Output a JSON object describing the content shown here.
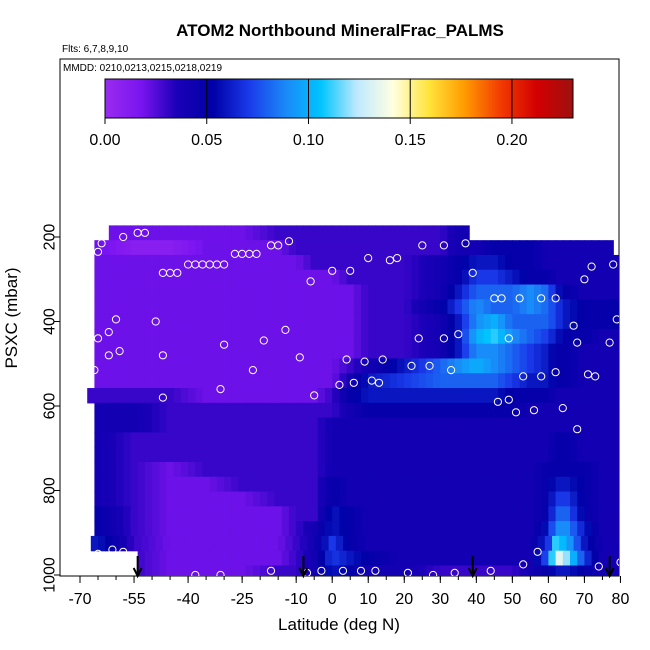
{
  "chart_data": {
    "type": "heatmap",
    "title": "ATOM2 Northbound MineralFrac_PALMS",
    "flights_note": "Flts: 6,7,8,9,10",
    "dates_note": "MMDD: 0210,0213,0215,0218,0219",
    "xlabel": "Latitude (deg N)",
    "ylabel": "PSXC (mbar)",
    "xlim": [
      -70,
      82
    ],
    "ylim": [
      1005,
      110
    ],
    "x_ticks": [
      "-70",
      "-55",
      "-40",
      "-25",
      "-10",
      "0",
      "10",
      "20",
      "30",
      "40",
      "50",
      "60",
      "70",
      "80"
    ],
    "y_ticks": [
      "200",
      "400",
      "600",
      "800",
      "1000"
    ],
    "colorbar": {
      "range": [
        0,
        0.23
      ],
      "ticks": [
        "0.00",
        "0.05",
        "0.10",
        "0.15",
        "0.20"
      ],
      "colors": [
        "#9a2cf0",
        "#7a14f0",
        "#1a00b8",
        "#0000a6",
        "#1a3aea",
        "#1a88f8",
        "#00c4ff",
        "#bfe9ff",
        "#ffffe0",
        "#ffe43a",
        "#ff9a00",
        "#f23a00",
        "#d20000",
        "#9e1010"
      ]
    },
    "pressure_levels": [
      190,
      225,
      260,
      295,
      330,
      365,
      400,
      435,
      470,
      505,
      540,
      575,
      610,
      645,
      680,
      715,
      750,
      785,
      820,
      855,
      890,
      925,
      960,
      995
    ],
    "latitude_nodes": [
      -65,
      -55,
      -45,
      -35,
      -25,
      -15,
      -10,
      -5,
      0,
      5,
      10,
      20,
      30,
      35,
      40,
      45,
      50,
      55,
      60,
      62,
      65,
      70,
      75,
      80
    ],
    "mineral_fraction": [
      [
        0.02,
        0.02,
        0.02,
        0.02,
        0.02,
        0.03,
        0.03,
        0.03,
        0.03,
        0.03,
        0.03,
        0.03,
        0.03,
        0.04,
        0.04,
        0.04,
        0.04,
        0.04,
        0.04,
        0.04,
        0.04,
        0.04,
        0.04,
        0.04
      ],
      [
        0.02,
        0.01,
        0.01,
        0.02,
        0.02,
        0.02,
        0.03,
        0.03,
        0.03,
        0.03,
        0.03,
        0.03,
        0.03,
        0.04,
        0.04,
        0.05,
        0.05,
        0.05,
        0.04,
        0.04,
        0.04,
        0.04,
        0.04,
        0.04
      ],
      [
        0.02,
        0.02,
        0.02,
        0.02,
        0.02,
        0.02,
        0.02,
        0.03,
        0.03,
        0.03,
        0.03,
        0.03,
        0.04,
        0.05,
        0.06,
        0.06,
        0.05,
        0.05,
        0.04,
        0.04,
        0.04,
        0.04,
        0.04,
        0.04
      ],
      [
        0.02,
        0.02,
        0.02,
        0.02,
        0.02,
        0.02,
        0.02,
        0.02,
        0.02,
        0.03,
        0.03,
        0.03,
        0.04,
        0.05,
        0.07,
        0.07,
        0.06,
        0.05,
        0.05,
        0.04,
        0.04,
        0.04,
        0.04,
        0.04
      ],
      [
        0.02,
        0.02,
        0.02,
        0.02,
        0.02,
        0.02,
        0.02,
        0.02,
        0.02,
        0.02,
        0.03,
        0.03,
        0.04,
        0.06,
        0.08,
        0.08,
        0.08,
        0.09,
        0.08,
        0.06,
        0.05,
        0.04,
        0.04,
        0.04
      ],
      [
        0.02,
        0.02,
        0.02,
        0.02,
        0.02,
        0.02,
        0.02,
        0.02,
        0.02,
        0.02,
        0.03,
        0.03,
        0.05,
        0.07,
        0.09,
        0.08,
        0.08,
        0.09,
        0.08,
        0.07,
        0.06,
        0.05,
        0.05,
        0.05
      ],
      [
        0.02,
        0.02,
        0.02,
        0.02,
        0.02,
        0.02,
        0.02,
        0.02,
        0.02,
        0.02,
        0.03,
        0.03,
        0.04,
        0.06,
        0.09,
        0.1,
        0.08,
        0.08,
        0.08,
        0.07,
        0.06,
        0.05,
        0.05,
        0.05
      ],
      [
        0.02,
        0.02,
        0.02,
        0.02,
        0.02,
        0.02,
        0.02,
        0.02,
        0.02,
        0.02,
        0.03,
        0.03,
        0.04,
        0.06,
        0.1,
        0.11,
        0.09,
        0.08,
        0.07,
        0.06,
        0.05,
        0.05,
        0.04,
        0.04
      ],
      [
        0.02,
        0.02,
        0.02,
        0.02,
        0.02,
        0.02,
        0.02,
        0.02,
        0.02,
        0.02,
        0.03,
        0.03,
        0.04,
        0.06,
        0.09,
        0.09,
        0.08,
        0.07,
        0.06,
        0.05,
        0.05,
        0.04,
        0.04,
        0.04
      ],
      [
        0.02,
        0.02,
        0.02,
        0.02,
        0.02,
        0.02,
        0.02,
        0.02,
        0.02,
        0.03,
        0.04,
        0.06,
        0.08,
        0.09,
        0.1,
        0.09,
        0.08,
        0.07,
        0.06,
        0.05,
        0.05,
        0.04,
        0.04,
        0.04
      ],
      [
        0.02,
        0.02,
        0.02,
        0.02,
        0.02,
        0.02,
        0.02,
        0.02,
        0.02,
        0.04,
        0.06,
        0.07,
        0.08,
        0.08,
        0.08,
        0.08,
        0.07,
        0.06,
        0.06,
        0.05,
        0.05,
        0.04,
        0.04,
        0.04
      ],
      [
        0.03,
        0.03,
        0.03,
        0.02,
        0.02,
        0.02,
        0.02,
        0.02,
        0.03,
        0.05,
        0.06,
        0.06,
        0.06,
        0.06,
        0.06,
        0.06,
        0.05,
        0.05,
        0.05,
        0.04,
        0.04,
        0.04,
        0.04,
        0.04
      ],
      [
        0.04,
        0.04,
        0.03,
        0.03,
        0.03,
        0.03,
        0.03,
        0.03,
        0.03,
        0.04,
        0.05,
        0.05,
        0.05,
        0.05,
        0.05,
        0.05,
        0.05,
        0.04,
        0.04,
        0.04,
        0.04,
        0.04,
        0.04,
        0.04
      ],
      [
        0.04,
        0.04,
        0.03,
        0.03,
        0.03,
        0.03,
        0.03,
        0.03,
        0.04,
        0.04,
        0.04,
        0.04,
        0.04,
        0.04,
        0.04,
        0.04,
        0.04,
        0.04,
        0.04,
        0.04,
        0.04,
        0.04,
        0.04,
        0.04
      ],
      [
        0.04,
        0.03,
        0.03,
        0.03,
        0.03,
        0.03,
        0.03,
        0.03,
        0.04,
        0.04,
        0.04,
        0.04,
        0.04,
        0.04,
        0.04,
        0.04,
        0.04,
        0.04,
        0.04,
        0.05,
        0.05,
        0.04,
        0.04,
        0.04
      ],
      [
        0.04,
        0.03,
        0.03,
        0.03,
        0.03,
        0.03,
        0.03,
        0.03,
        0.04,
        0.04,
        0.04,
        0.04,
        0.04,
        0.04,
        0.04,
        0.04,
        0.04,
        0.04,
        0.04,
        0.05,
        0.05,
        0.04,
        0.04,
        0.04
      ],
      [
        0.04,
        0.03,
        0.02,
        0.03,
        0.03,
        0.03,
        0.03,
        0.03,
        0.04,
        0.04,
        0.04,
        0.04,
        0.04,
        0.04,
        0.04,
        0.04,
        0.04,
        0.04,
        0.05,
        0.05,
        0.05,
        0.05,
        0.04,
        0.04
      ],
      [
        0.04,
        0.03,
        0.02,
        0.02,
        0.03,
        0.03,
        0.03,
        0.03,
        0.05,
        0.04,
        0.04,
        0.04,
        0.04,
        0.04,
        0.04,
        0.04,
        0.04,
        0.04,
        0.05,
        0.06,
        0.06,
        0.05,
        0.04,
        0.04
      ],
      [
        0.04,
        0.03,
        0.02,
        0.02,
        0.02,
        0.03,
        0.03,
        0.03,
        0.05,
        0.04,
        0.04,
        0.04,
        0.04,
        0.04,
        0.04,
        0.04,
        0.04,
        0.04,
        0.05,
        0.07,
        0.07,
        0.05,
        0.04,
        0.04
      ],
      [
        0.05,
        0.03,
        0.02,
        0.02,
        0.02,
        0.02,
        0.03,
        0.03,
        0.06,
        0.05,
        0.04,
        0.04,
        0.04,
        0.04,
        0.04,
        0.04,
        0.04,
        0.04,
        0.05,
        0.08,
        0.08,
        0.05,
        0.04,
        0.04
      ],
      [
        0.05,
        0.03,
        0.02,
        0.02,
        0.02,
        0.02,
        0.03,
        0.04,
        0.06,
        0.05,
        0.04,
        0.04,
        0.04,
        0.04,
        0.04,
        0.04,
        0.04,
        0.04,
        0.06,
        0.09,
        0.09,
        0.06,
        0.04,
        0.04
      ],
      [
        0.06,
        0.03,
        0.02,
        0.02,
        0.02,
        0.02,
        0.03,
        0.04,
        0.07,
        0.05,
        0.04,
        0.04,
        0.04,
        0.04,
        0.04,
        0.04,
        0.04,
        0.04,
        0.07,
        0.11,
        0.1,
        0.06,
        0.04,
        0.04
      ],
      [
        0.07,
        0.03,
        0.02,
        0.02,
        0.02,
        0.02,
        0.03,
        0.04,
        0.07,
        0.06,
        0.05,
        0.04,
        0.04,
        0.04,
        0.04,
        0.04,
        0.04,
        0.04,
        0.08,
        0.14,
        0.12,
        0.07,
        0.04,
        0.04
      ],
      [
        0.04,
        0.03,
        0.02,
        0.02,
        0.02,
        0.03,
        0.03,
        0.04,
        0.06,
        0.05,
        0.04,
        0.04,
        0.03,
        0.03,
        0.03,
        0.03,
        0.03,
        0.04,
        0.05,
        0.06,
        0.06,
        0.05,
        0.04,
        0.04
      ]
    ],
    "samples": [
      {
        "lat": -64,
        "p": 215
      },
      {
        "lat": -58,
        "p": 200
      },
      {
        "lat": -54,
        "p": 190
      },
      {
        "lat": -52,
        "p": 190
      },
      {
        "lat": -65,
        "p": 235
      },
      {
        "lat": -47,
        "p": 285
      },
      {
        "lat": -45,
        "p": 285
      },
      {
        "lat": -43,
        "p": 285
      },
      {
        "lat": -40,
        "p": 265
      },
      {
        "lat": -38,
        "p": 265
      },
      {
        "lat": -36,
        "p": 265
      },
      {
        "lat": -34,
        "p": 265
      },
      {
        "lat": -32,
        "p": 265
      },
      {
        "lat": -30,
        "p": 265
      },
      {
        "lat": -27,
        "p": 240
      },
      {
        "lat": -25,
        "p": 240
      },
      {
        "lat": -23,
        "p": 240
      },
      {
        "lat": -21,
        "p": 240
      },
      {
        "lat": -17,
        "p": 220
      },
      {
        "lat": -15,
        "p": 220
      },
      {
        "lat": -12,
        "p": 210
      },
      {
        "lat": -6,
        "p": 305
      },
      {
        "lat": 0,
        "p": 280
      },
      {
        "lat": 5,
        "p": 280
      },
      {
        "lat": 10,
        "p": 250
      },
      {
        "lat": 16,
        "p": 255
      },
      {
        "lat": 18,
        "p": 250
      },
      {
        "lat": 25,
        "p": 220
      },
      {
        "lat": 31,
        "p": 220
      },
      {
        "lat": 37,
        "p": 215
      },
      {
        "lat": 39,
        "p": 285
      },
      {
        "lat": 45,
        "p": 345
      },
      {
        "lat": 47,
        "p": 345
      },
      {
        "lat": 52,
        "p": 345
      },
      {
        "lat": 58,
        "p": 345
      },
      {
        "lat": 62,
        "p": 345
      },
      {
        "lat": 72,
        "p": 270
      },
      {
        "lat": 78,
        "p": 265
      },
      {
        "lat": 81,
        "p": 285
      },
      {
        "lat": 70,
        "p": 300
      },
      {
        "lat": -49,
        "p": 400
      },
      {
        "lat": -60,
        "p": 395
      },
      {
        "lat": -65,
        "p": 440
      },
      {
        "lat": -62,
        "p": 425
      },
      {
        "lat": -13,
        "p": 420
      },
      {
        "lat": 24,
        "p": 440
      },
      {
        "lat": 31,
        "p": 440
      },
      {
        "lat": 35,
        "p": 430
      },
      {
        "lat": 49,
        "p": 440
      },
      {
        "lat": 67,
        "p": 410
      },
      {
        "lat": 79,
        "p": 395
      },
      {
        "lat": 68,
        "p": 450
      },
      {
        "lat": 77,
        "p": 450
      },
      {
        "lat": -59,
        "p": 470
      },
      {
        "lat": -62,
        "p": 480
      },
      {
        "lat": -47,
        "p": 480
      },
      {
        "lat": -30,
        "p": 455
      },
      {
        "lat": -19,
        "p": 445
      },
      {
        "lat": -9,
        "p": 485
      },
      {
        "lat": 4,
        "p": 490
      },
      {
        "lat": 9,
        "p": 495
      },
      {
        "lat": 14,
        "p": 490
      },
      {
        "lat": 22,
        "p": 505
      },
      {
        "lat": 27,
        "p": 505
      },
      {
        "lat": 33,
        "p": 515
      },
      {
        "lat": -22,
        "p": 515
      },
      {
        "lat": 13,
        "p": 545
      },
      {
        "lat": 11,
        "p": 540
      },
      {
        "lat": 6,
        "p": 545
      },
      {
        "lat": 2,
        "p": 550
      },
      {
        "lat": 53,
        "p": 530
      },
      {
        "lat": 58,
        "p": 530
      },
      {
        "lat": 62,
        "p": 520
      },
      {
        "lat": 71,
        "p": 525
      },
      {
        "lat": 73,
        "p": 530
      },
      {
        "lat": -66,
        "p": 515
      },
      {
        "lat": -31,
        "p": 560
      },
      {
        "lat": -47,
        "p": 580
      },
      {
        "lat": -5,
        "p": 575
      },
      {
        "lat": 46,
        "p": 590
      },
      {
        "lat": 49,
        "p": 585
      },
      {
        "lat": 51,
        "p": 615
      },
      {
        "lat": 56,
        "p": 610
      },
      {
        "lat": 64,
        "p": 605
      },
      {
        "lat": 81,
        "p": 585
      },
      {
        "lat": 68,
        "p": 655
      },
      {
        "lat": -61,
        "p": 940
      },
      {
        "lat": -65,
        "p": 950
      },
      {
        "lat": -58,
        "p": 945
      },
      {
        "lat": 57,
        "p": 945
      },
      {
        "lat": 53,
        "p": 975
      },
      {
        "lat": 74,
        "p": 980
      },
      {
        "lat": 80,
        "p": 970
      },
      {
        "lat": -38,
        "p": 1000
      },
      {
        "lat": -31,
        "p": 1000
      },
      {
        "lat": -17,
        "p": 990
      },
      {
        "lat": -7,
        "p": 995
      },
      {
        "lat": -3,
        "p": 990
      },
      {
        "lat": 3,
        "p": 990
      },
      {
        "lat": 8,
        "p": 990
      },
      {
        "lat": 12,
        "p": 990
      },
      {
        "lat": 21,
        "p": 995
      },
      {
        "lat": 28,
        "p": 1000
      },
      {
        "lat": 34,
        "p": 995
      },
      {
        "lat": 44,
        "p": 990
      }
    ],
    "arrow_latitudes": [
      -54,
      -8,
      39,
      77
    ]
  }
}
